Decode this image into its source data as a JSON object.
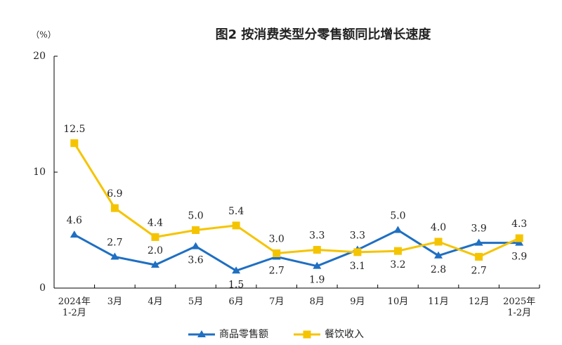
{
  "chart_data": {
    "type": "line",
    "title": "图2 按消费类型分零售额同比增长速度",
    "y_unit": "（%）",
    "categories": [
      "2024年\n1-2月",
      "3月",
      "4月",
      "5月",
      "6月",
      "7月",
      "8月",
      "9月",
      "10月",
      "11月",
      "12月",
      "2025年\n1-2月"
    ],
    "series": [
      {
        "name": "商品零售额",
        "color": "#1f6fc2",
        "marker": "triangle",
        "values": [
          4.6,
          2.7,
          2.0,
          3.6,
          1.5,
          2.7,
          1.9,
          3.3,
          5.0,
          2.8,
          3.9,
          3.9
        ],
        "value_labels": [
          "4.6",
          "2.7",
          "2.0",
          "3.6",
          "1.5",
          "2.7",
          "1.9",
          "3.3",
          "5.0",
          "2.8",
          "3.9",
          "3.9"
        ]
      },
      {
        "name": "餐饮收入",
        "color": "#f5c400",
        "marker": "square",
        "values": [
          12.5,
          6.9,
          4.4,
          5.0,
          5.4,
          3.0,
          3.3,
          3.1,
          3.2,
          4.0,
          2.7,
          4.3
        ],
        "value_labels": [
          "12.5",
          "6.9",
          "4.4",
          "5.0",
          "5.4",
          "3.0",
          "3.3",
          "3.1",
          "3.2",
          "4.0",
          "2.7",
          "4.3"
        ]
      }
    ],
    "ylim": [
      0,
      20
    ],
    "yticks": [
      0,
      10,
      20
    ],
    "grid": false
  }
}
